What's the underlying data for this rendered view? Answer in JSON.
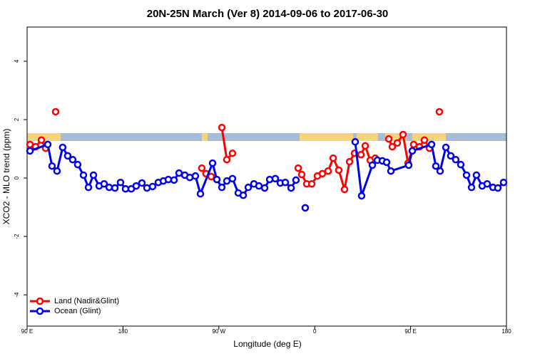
{
  "chart_data": {
    "type": "line",
    "title": "20N-25N March (Ver 8)   2014-09-06 to 2017-06-30",
    "xlabel": "Longitude (deg E)",
    "ylabel": "XCO2 - MLO trend (ppm)",
    "xlim": [
      90,
      540
    ],
    "xticks": [
      {
        "value": 90,
        "label": "90 E"
      },
      180,
      {
        "value": 270,
        "label": "90 W"
      },
      {
        "value": 360,
        "label": "0"
      },
      {
        "value": 450,
        "label": "90 E"
      },
      {
        "value": 540,
        "label": "180"
      }
    ],
    "ylim": [
      -5.07,
      5.17
    ],
    "yticks": [
      -4,
      -2,
      0,
      2,
      4
    ],
    "legend": "bottomleft",
    "series": [
      {
        "name": "Land (Nadir&Glint)",
        "color": "#ff0000",
        "x": [
          92.7,
          98,
          103.4,
          107.4,
          null,
          116.8,
          null,
          254,
          258,
          262.8,
          null,
          272.8,
          277.5,
          282.8,
          null,
          344.5,
          347.8,
          352.5,
          357.2,
          362.5,
          367.2,
          372.6,
          377.3,
          382.6,
          388,
          392.7,
          397.4,
          403.4,
          407.4,
          412.1,
          416.8,
          null,
          429.5,
          432.8,
          437.5,
          442.9,
          447.6,
          452.9,
          458.3,
          463,
          467.7,
          null,
          477
        ],
        "values": [
          1.15,
          1.07,
          1.3,
          1.02,
          null,
          2.27,
          null,
          0.34,
          0.15,
          0.05,
          null,
          1.73,
          0.63,
          0.85,
          null,
          0.34,
          0.12,
          -0.2,
          -0.2,
          0.07,
          0.15,
          0.24,
          0.68,
          0.27,
          -0.39,
          0.56,
          0.85,
          0.8,
          1.1,
          0.61,
          0.68,
          null,
          1.34,
          1.07,
          1.2,
          1.49,
          0.51,
          1.15,
          1.07,
          1.3,
          1.02,
          null,
          2.27
        ]
      },
      {
        "name": "Ocean (Glint)",
        "color": "#0000ee",
        "x": [
          92.7,
          109.4,
          113.4,
          118.1,
          123.4,
          128.1,
          132.8,
          137.5,
          142.9,
          147.6,
          152.3,
          157.6,
          162.3,
          167,
          172.4,
          177.7,
          182.4,
          187.8,
          192.4,
          197.8,
          202.5,
          207.8,
          213.2,
          217.9,
          222.6,
          227.9,
          232.6,
          238,
          242.7,
          248,
          252.7,
          264.1,
          268.1,
          272.8,
          277.5,
          282.8,
          288.2,
          292.9,
          297.6,
          302.9,
          307.6,
          313,
          317.7,
          323,
          327.7,
          332.4,
          337.8,
          342.4,
          null,
          351.1,
          null,
          398,
          404,
          414.1,
          418.8,
          423.5,
          427.5,
          431.5,
          448.2,
          451.6,
          469.7,
          473.7,
          477.7,
          483.1,
          487.7,
          492.4,
          497.1,
          502.5,
          507.2,
          511.8,
          517.2,
          521.9,
          527.3,
          531.9,
          537.3
        ],
        "values": [
          0.93,
          1.15,
          0.41,
          0.24,
          1.05,
          0.76,
          0.63,
          0.46,
          0.1,
          -0.32,
          0.1,
          -0.27,
          -0.2,
          -0.32,
          -0.34,
          -0.15,
          -0.37,
          -0.37,
          -0.27,
          -0.17,
          -0.34,
          -0.29,
          -0.15,
          -0.1,
          -0.05,
          -0.07,
          0.17,
          0.1,
          0.02,
          0.07,
          -0.54,
          0.51,
          -0.05,
          -0.32,
          -0.1,
          -0.02,
          -0.51,
          -0.59,
          -0.32,
          -0.2,
          -0.27,
          -0.34,
          -0.05,
          -0.02,
          -0.17,
          -0.15,
          -0.34,
          -0.07,
          null,
          -1.02,
          null,
          1.24,
          -0.61,
          0.44,
          0.61,
          0.59,
          0.54,
          0.24,
          0.44,
          0.93,
          1.15,
          0.41,
          0.24,
          1.05,
          0.76,
          0.63,
          0.46,
          0.1,
          -0.32,
          0.1,
          -0.27,
          -0.2,
          -0.32,
          -0.34,
          -0.15
        ]
      }
    ]
  }
}
